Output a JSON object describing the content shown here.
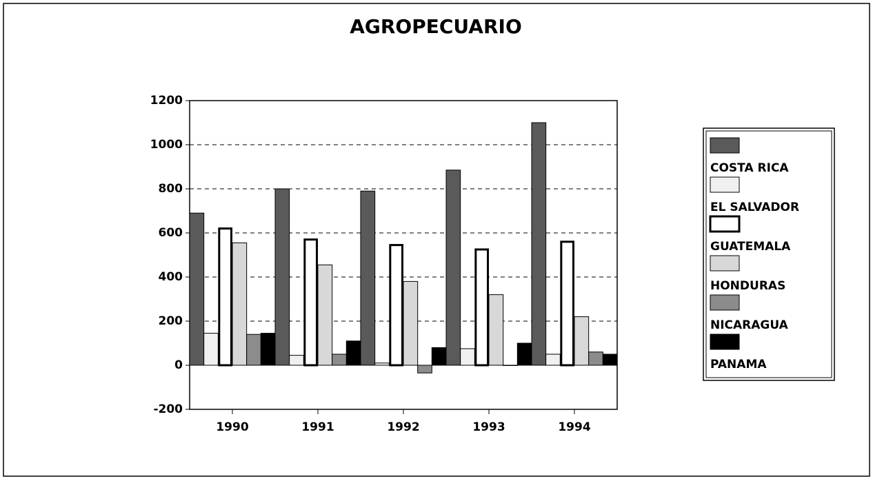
{
  "chart_data": {
    "type": "bar",
    "title": "AGROPECUARIO",
    "categories": [
      "1990",
      "1991",
      "1992",
      "1993",
      "1994"
    ],
    "series": [
      {
        "name": "COSTA RICA",
        "color": "#5a5a5a",
        "values": [
          690,
          800,
          790,
          885,
          1100
        ]
      },
      {
        "name": "EL SALVADOR",
        "color": "#f0f0f0",
        "values": [
          145,
          45,
          10,
          75,
          50
        ]
      },
      {
        "name": "GUATEMALA",
        "color": "#ffffff",
        "values": [
          620,
          570,
          545,
          525,
          560
        ]
      },
      {
        "name": "HONDURAS",
        "color": "#d8d8d8",
        "values": [
          555,
          455,
          380,
          320,
          220
        ]
      },
      {
        "name": "NICARAGUA",
        "color": "#8c8c8c",
        "values": [
          140,
          50,
          -35,
          0,
          60
        ]
      },
      {
        "name": "PANAMA",
        "color": "#000000",
        "values": [
          145,
          110,
          80,
          100,
          50
        ]
      }
    ],
    "ylim": [
      -200,
      1200
    ],
    "yticks": [
      -200,
      0,
      200,
      400,
      600,
      800,
      1000,
      1200
    ],
    "grid": true
  }
}
